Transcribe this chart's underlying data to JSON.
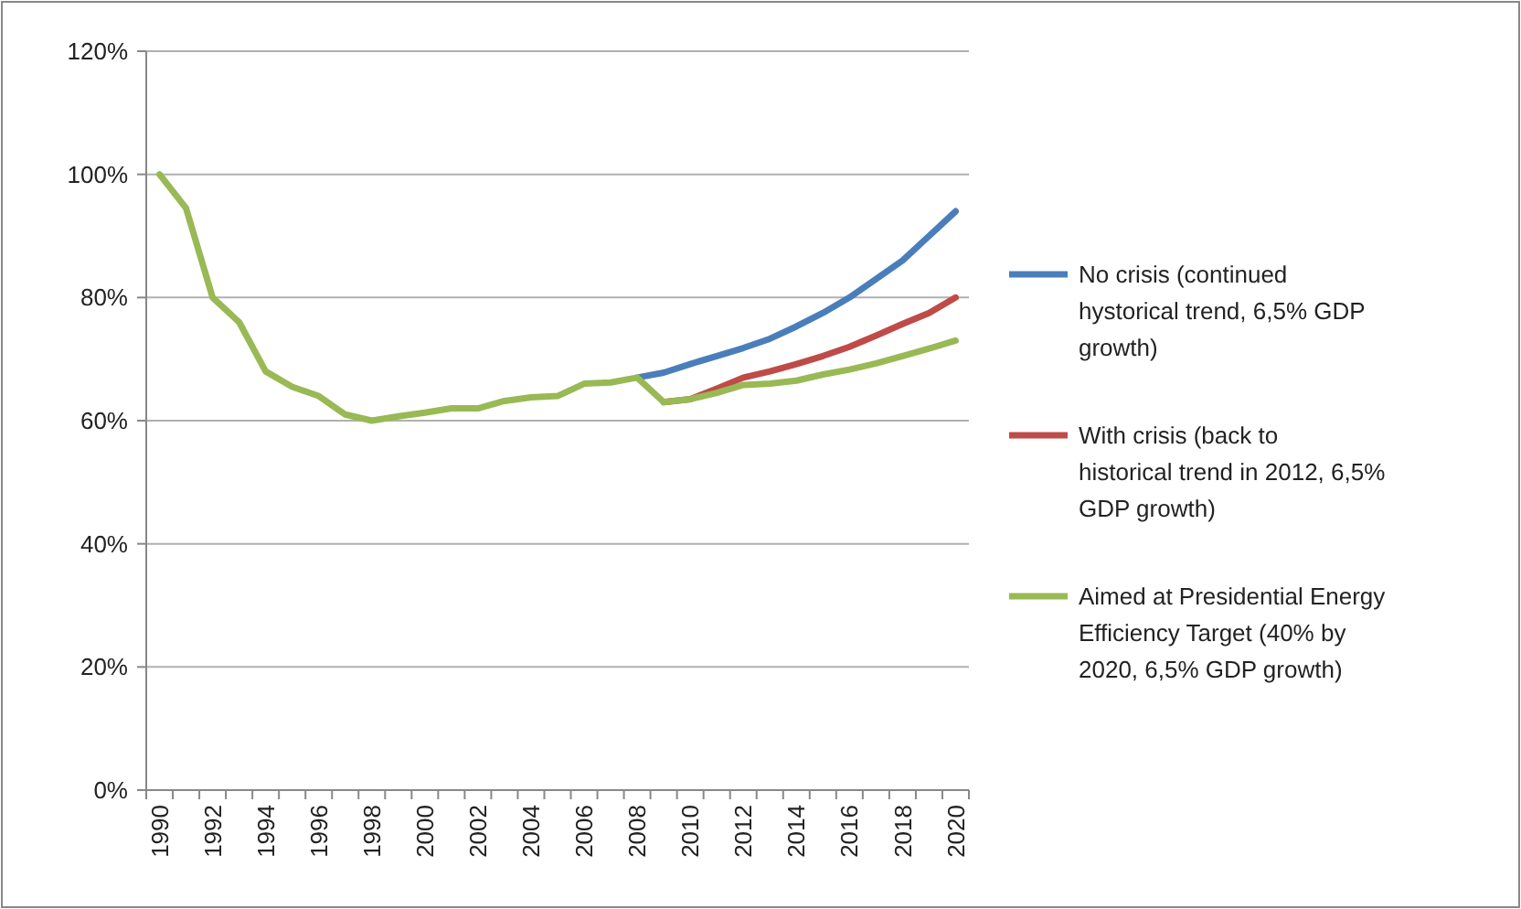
{
  "chart_data": {
    "type": "line",
    "categories": [
      "1990",
      null,
      "1992",
      null,
      "1994",
      null,
      "1996",
      null,
      "1998",
      null,
      "2000",
      null,
      "2002",
      null,
      "2004",
      null,
      "2006",
      null,
      "2008",
      null,
      "2010",
      null,
      "2012",
      null,
      "2014",
      null,
      "2016",
      null,
      "2018",
      null,
      "2020"
    ],
    "series": [
      {
        "name": "No crisis (continued hystorical trend, 6,5% GDP growth)",
        "color": "#4a7ebb",
        "values": [
          null,
          null,
          null,
          null,
          null,
          null,
          null,
          null,
          null,
          null,
          null,
          null,
          null,
          null,
          null,
          null,
          null,
          null,
          67,
          67.8,
          69.2,
          70.5,
          71.8,
          73.3,
          75.3,
          77.5,
          80,
          83,
          86,
          90,
          94
        ]
      },
      {
        "name": "With crisis (back to historical trend in 2012, 6,5% GDP growth)",
        "color": "#be4b48",
        "values": [
          null,
          null,
          null,
          null,
          null,
          null,
          null,
          null,
          null,
          null,
          null,
          null,
          null,
          null,
          null,
          null,
          null,
          null,
          null,
          63,
          63.5,
          65.2,
          67,
          68,
          69.2,
          70.5,
          72,
          73.8,
          75.7,
          77.5,
          80
        ]
      },
      {
        "name": "Aimed at Presidential Energy Efficiency Target (40% by 2020, 6,5% GDP growth)",
        "color": "#98b954",
        "values": [
          100,
          94.5,
          80,
          76,
          68,
          65.5,
          64,
          61,
          60,
          60.7,
          61.3,
          62,
          62,
          63.2,
          63.8,
          64,
          66,
          66.2,
          67,
          63,
          63.5,
          64.5,
          65.8,
          66,
          66.5,
          67.5,
          68.3,
          69.3,
          70.5,
          71.7,
          73
        ]
      }
    ],
    "ylim": [
      0,
      120
    ],
    "yticks": [
      {
        "value": 0,
        "label": "0%"
      },
      {
        "value": 20,
        "label": "20%"
      },
      {
        "value": 40,
        "label": "40%"
      },
      {
        "value": 60,
        "label": "60%"
      },
      {
        "value": 80,
        "label": "80%"
      },
      {
        "value": 100,
        "label": "100%"
      },
      {
        "value": 120,
        "label": "120%"
      }
    ],
    "grid": "y",
    "legend": "right",
    "marker": "none",
    "line_style": "solid"
  }
}
